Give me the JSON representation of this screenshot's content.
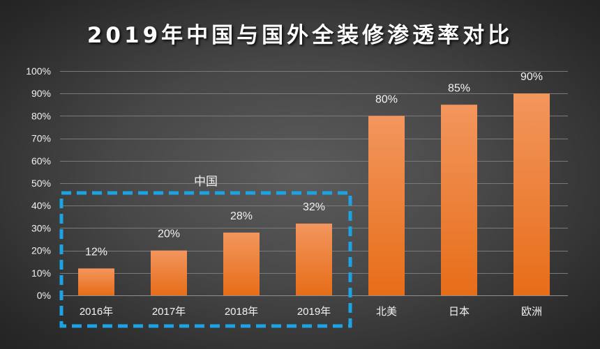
{
  "colors": {
    "bar_top": "#F2965E",
    "bar_bottom": "#E76D18",
    "group_box": "#1BA3E4",
    "grid": "#7A7A7A"
  },
  "chart_data": {
    "type": "bar",
    "title": "2019年中国与国外全装修渗透率对比",
    "categories": [
      "2016年",
      "2017年",
      "2018年",
      "2019年",
      "北美",
      "日本",
      "欧洲"
    ],
    "values": [
      12,
      20,
      28,
      32,
      80,
      85,
      90
    ],
    "data_labels": [
      "12%",
      "20%",
      "28%",
      "32%",
      "80%",
      "85%",
      "90%"
    ],
    "ylim": [
      0,
      100
    ],
    "yticks": [
      0,
      10,
      20,
      30,
      40,
      50,
      60,
      70,
      80,
      90,
      100
    ],
    "ytick_labels": [
      "0%",
      "10%",
      "20%",
      "30%",
      "40%",
      "50%",
      "60%",
      "70%",
      "80%",
      "90%",
      "100%"
    ],
    "grid": true,
    "groups": [
      {
        "label": "中国",
        "categories": [
          "2016年",
          "2017年",
          "2018年",
          "2019年"
        ]
      }
    ]
  }
}
